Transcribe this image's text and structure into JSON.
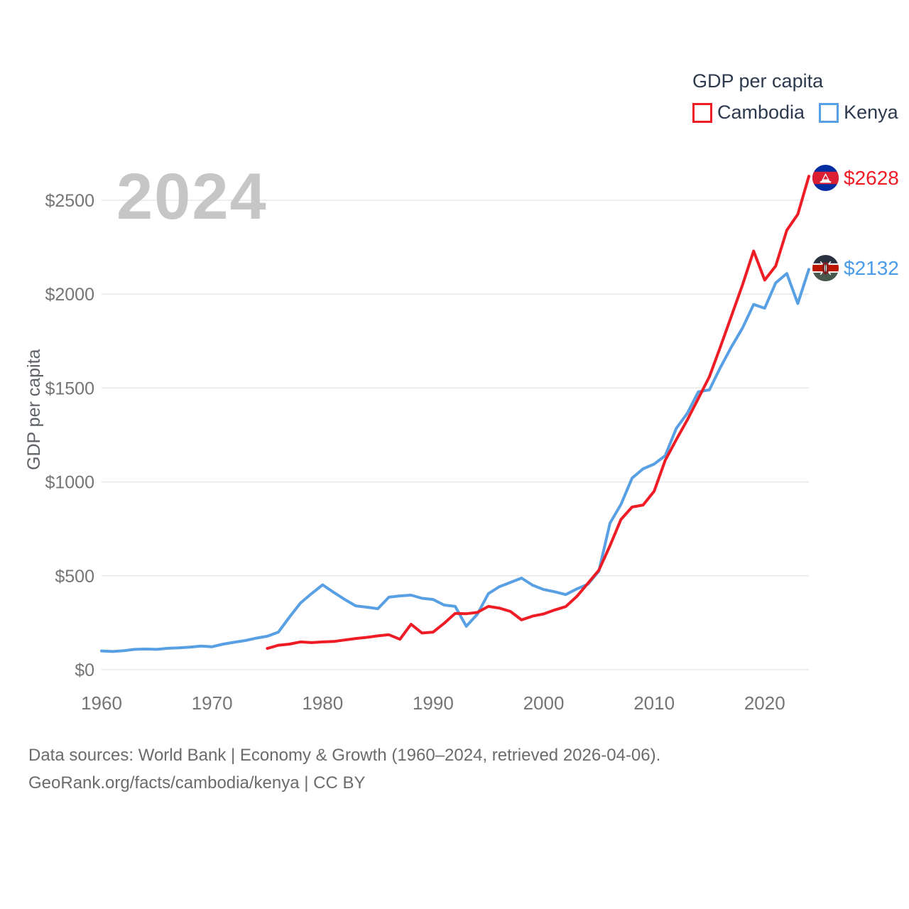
{
  "legend": {
    "title": "GDP per capita",
    "items": [
      {
        "label": "Cambodia",
        "color": "#ee1c25"
      },
      {
        "label": "Kenya",
        "color": "#58a0e3"
      }
    ]
  },
  "watermark": "2024",
  "axes": {
    "y_label": "GDP per capita"
  },
  "end_labels": [
    {
      "series": "Cambodia",
      "icon": "cambodia-flag-icon",
      "value": "$2628",
      "color": "#ee1c25"
    },
    {
      "series": "Kenya",
      "icon": "kenya-flag-icon",
      "value": "$2132",
      "color": "#4a9be8"
    }
  ],
  "footer": {
    "line1": "Data sources: World Bank | Economy & Growth (1960–2024, retrieved 2026-04-06).",
    "line2": "GeoRank.org/facts/cambodia/kenya | CC BY"
  },
  "chart_data": {
    "type": "line",
    "title": "GDP per capita",
    "ylabel": "GDP per capita",
    "xlabel": "",
    "x_range": [
      1960,
      2024
    ],
    "ylim": [
      0,
      2700
    ],
    "grid": true,
    "legend_position": "top-right",
    "y_ticks": [
      {
        "value": 0,
        "label": "$0"
      },
      {
        "value": 500,
        "label": "$500"
      },
      {
        "value": 1000,
        "label": "$1000"
      },
      {
        "value": 1500,
        "label": "$1500"
      },
      {
        "value": 2000,
        "label": "$2000"
      },
      {
        "value": 2500,
        "label": "$2500"
      }
    ],
    "x_ticks": [
      1960,
      1970,
      1980,
      1990,
      2000,
      2010,
      2020
    ],
    "series": [
      {
        "name": "Kenya",
        "color": "#58a0e3",
        "end_label": "$2132",
        "years": [
          1960,
          1961,
          1962,
          1963,
          1964,
          1965,
          1966,
          1967,
          1968,
          1969,
          1970,
          1971,
          1972,
          1973,
          1974,
          1975,
          1976,
          1977,
          1978,
          1979,
          1980,
          1981,
          1982,
          1983,
          1984,
          1985,
          1986,
          1987,
          1988,
          1989,
          1990,
          1991,
          1992,
          1993,
          1994,
          1995,
          1996,
          1997,
          1998,
          1999,
          2000,
          2001,
          2002,
          2003,
          2004,
          2005,
          2006,
          2007,
          2008,
          2009,
          2010,
          2011,
          2012,
          2013,
          2014,
          2015,
          2016,
          2017,
          2018,
          2019,
          2020,
          2021,
          2022,
          2023,
          2024
        ],
        "values": [
          100,
          97,
          101,
          108,
          110,
          108,
          114,
          116,
          120,
          126,
          122,
          136,
          146,
          155,
          168,
          178,
          200,
          280,
          355,
          405,
          452,
          412,
          374,
          340,
          333,
          325,
          386,
          393,
          397,
          380,
          374,
          344,
          337,
          231,
          295,
          405,
          442,
          465,
          488,
          450,
          427,
          415,
          400,
          430,
          455,
          525,
          780,
          880,
          1020,
          1070,
          1095,
          1140,
          1285,
          1365,
          1480,
          1490,
          1610,
          1720,
          1820,
          1945,
          1925,
          2060,
          2110,
          1950,
          2132
        ]
      },
      {
        "name": "Cambodia",
        "color": "#ee1c25",
        "end_label": "$2628",
        "years": [
          1975,
          1976,
          1977,
          1978,
          1979,
          1980,
          1981,
          1982,
          1983,
          1984,
          1985,
          1986,
          1987,
          1988,
          1989,
          1990,
          1991,
          1992,
          1993,
          1994,
          1995,
          1996,
          1997,
          1998,
          1999,
          2000,
          2001,
          2002,
          2003,
          2004,
          2005,
          2006,
          2007,
          2008,
          2009,
          2010,
          2011,
          2012,
          2013,
          2014,
          2015,
          2016,
          2017,
          2018,
          2019,
          2020,
          2021,
          2022,
          2023,
          2024
        ],
        "values": [
          113,
          130,
          136,
          148,
          144,
          148,
          150,
          158,
          166,
          172,
          180,
          186,
          162,
          242,
          195,
          200,
          247,
          300,
          298,
          305,
          337,
          328,
          310,
          265,
          285,
          297,
          318,
          336,
          390,
          460,
          530,
          660,
          800,
          866,
          877,
          950,
          1115,
          1225,
          1330,
          1445,
          1560,
          1720,
          1885,
          2050,
          2230,
          2075,
          2150,
          2340,
          2425,
          2628
        ]
      }
    ]
  }
}
